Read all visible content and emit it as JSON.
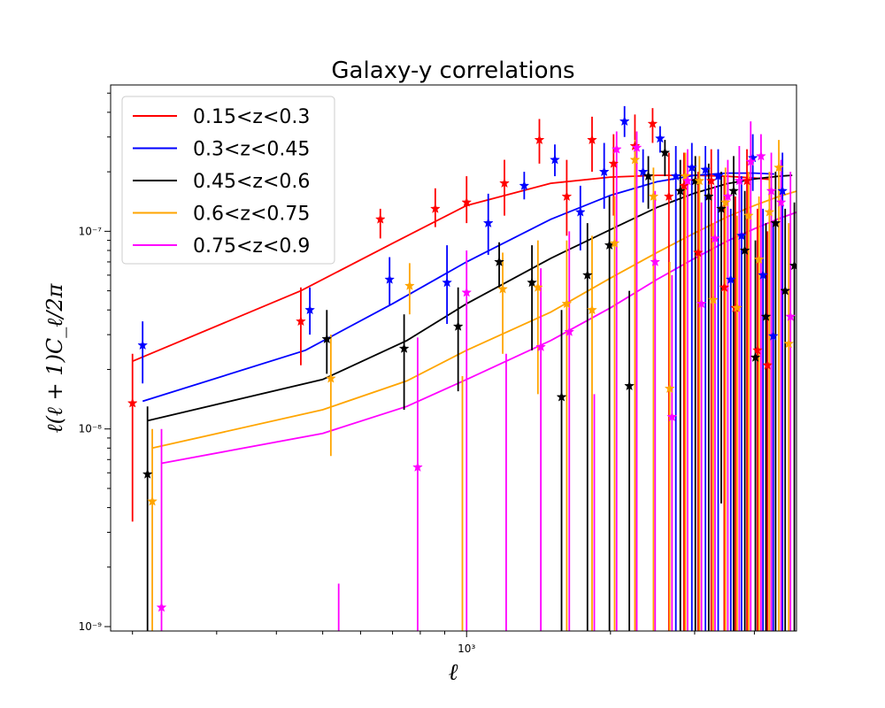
{
  "chart_data": {
    "type": "scatter",
    "title": "Galaxy-y correlations",
    "xlabel": "ℓ",
    "ylabel": "ℓ(ℓ + 1)C_ℓ/2π",
    "xscale": "log",
    "yscale": "log",
    "xlim": [
      180,
      4900
    ],
    "ylim": [
      9.5e-10,
      5.5e-07
    ],
    "x_ticks": [
      {
        "value": 1000,
        "label": "10³"
      }
    ],
    "y_ticks": [
      {
        "value": 1e-09,
        "label": "10⁻⁹"
      },
      {
        "value": 1e-08,
        "label": "10⁻⁸"
      },
      {
        "value": 1e-07,
        "label": "10⁻⁷"
      }
    ],
    "legend_position": "upper-left",
    "grid": false,
    "marker": "star",
    "series": [
      {
        "name": "0.15<z<0.3",
        "color": "#ff0000",
        "model": {
          "x": [
            200,
            450,
            700,
            1000,
            1500,
            2000,
            2500,
            3000,
            3500,
            4000,
            4300
          ],
          "y": [
            2.2e-08,
            5e-08,
            8.7e-08,
            1.35e-07,
            1.75e-07,
            1.88e-07,
            1.92e-07,
            1.92e-07,
            1.9e-07,
            1.86e-07,
            1.83e-07
          ]
        },
        "points": [
          {
            "x": 200,
            "y": 1.35e-08,
            "lo": 3.4e-09,
            "hi": 2.4e-08
          },
          {
            "x": 450,
            "y": 3.5e-08,
            "lo": 2.1e-08,
            "hi": 5.2e-08
          },
          {
            "x": 660,
            "y": 1.15e-07,
            "lo": 9.2e-08,
            "hi": 1.3e-07
          },
          {
            "x": 860,
            "y": 1.3e-07,
            "lo": 1.05e-07,
            "hi": 1.65e-07
          },
          {
            "x": 1000,
            "y": 1.4e-07,
            "lo": 1.1e-07,
            "hi": 1.9e-07
          },
          {
            "x": 1200,
            "y": 1.75e-07,
            "lo": 1.2e-07,
            "hi": 2.3e-07
          },
          {
            "x": 1420,
            "y": 2.9e-07,
            "lo": 2.2e-07,
            "hi": 3.7e-07
          },
          {
            "x": 1620,
            "y": 1.5e-07,
            "lo": 9.5e-08,
            "hi": 2.3e-07
          },
          {
            "x": 1830,
            "y": 2.9e-07,
            "lo": 2e-07,
            "hi": 3.8e-07
          },
          {
            "x": 2030,
            "y": 2.2e-07,
            "lo": 1.2e-07,
            "hi": 3.1e-07
          },
          {
            "x": 2250,
            "y": 2.7e-07,
            "lo": 9e-10,
            "hi": 3.9e-07
          },
          {
            "x": 2450,
            "y": 3.5e-07,
            "lo": 2.8e-07,
            "hi": 4.2e-07
          },
          {
            "x": 2650,
            "y": 1.5e-07,
            "lo": 9e-10,
            "hi": 2.5e-07
          },
          {
            "x": 2850,
            "y": 1.7e-07,
            "lo": 9e-10,
            "hi": 2.5e-07
          },
          {
            "x": 3050,
            "y": 7.8e-08,
            "lo": 9e-10,
            "hi": 2e-07
          },
          {
            "x": 3250,
            "y": 1.8e-07,
            "lo": 9e-10,
            "hi": 2.6e-07
          },
          {
            "x": 3460,
            "y": 5.2e-08,
            "lo": 9e-10,
            "hi": 1.9e-07
          },
          {
            "x": 3650,
            "y": 4.1e-08,
            "lo": 9e-10,
            "hi": 1.5e-07
          },
          {
            "x": 3860,
            "y": 1.8e-07,
            "lo": 9e-10,
            "hi": 2.6e-07
          },
          {
            "x": 4060,
            "y": 2.5e-08,
            "lo": 9e-10,
            "hi": 1.3e-07
          },
          {
            "x": 4260,
            "y": 2.1e-08,
            "lo": 9e-10,
            "hi": 1e-07
          }
        ]
      },
      {
        "name": "0.3<z<0.45",
        "color": "#0000ff",
        "model": {
          "x": [
            210,
            460,
            700,
            1000,
            1500,
            2000,
            2500,
            3000,
            3500,
            4000,
            4400
          ],
          "y": [
            1.38e-08,
            2.5e-08,
            4.3e-08,
            7e-08,
            1.15e-07,
            1.52e-07,
            1.78e-07,
            1.92e-07,
            1.97e-07,
            1.97e-07,
            1.95e-07
          ]
        },
        "points": [
          {
            "x": 210,
            "y": 2.65e-08,
            "lo": 1.7e-08,
            "hi": 3.5e-08
          },
          {
            "x": 470,
            "y": 4e-08,
            "lo": 3e-08,
            "hi": 5.2e-08
          },
          {
            "x": 690,
            "y": 5.7e-08,
            "lo": 4.2e-08,
            "hi": 7.4e-08
          },
          {
            "x": 910,
            "y": 5.5e-08,
            "lo": 3.4e-08,
            "hi": 8.5e-08
          },
          {
            "x": 1110,
            "y": 1.1e-07,
            "lo": 7.6e-08,
            "hi": 1.55e-07
          },
          {
            "x": 1320,
            "y": 1.7e-07,
            "lo": 1.45e-07,
            "hi": 2e-07
          },
          {
            "x": 1530,
            "y": 2.3e-07,
            "lo": 1.9e-07,
            "hi": 2.75e-07
          },
          {
            "x": 1730,
            "y": 1.25e-07,
            "lo": 8e-08,
            "hi": 1.7e-07
          },
          {
            "x": 1940,
            "y": 2e-07,
            "lo": 1.3e-07,
            "hi": 2.8e-07
          },
          {
            "x": 2140,
            "y": 3.6e-07,
            "lo": 3e-07,
            "hi": 4.3e-07
          },
          {
            "x": 2340,
            "y": 2e-07,
            "lo": 1.4e-07,
            "hi": 2.6e-07
          },
          {
            "x": 2540,
            "y": 2.95e-07,
            "lo": 2.5e-07,
            "hi": 3.4e-07
          },
          {
            "x": 2740,
            "y": 1.9e-07,
            "lo": 9e-10,
            "hi": 2.7e-07
          },
          {
            "x": 2960,
            "y": 2.1e-07,
            "lo": 9e-10,
            "hi": 2.8e-07
          },
          {
            "x": 3160,
            "y": 2.05e-07,
            "lo": 9e-10,
            "hi": 2.7e-07
          },
          {
            "x": 3360,
            "y": 1.9e-07,
            "lo": 9e-10,
            "hi": 2.6e-07
          },
          {
            "x": 3570,
            "y": 5.7e-08,
            "lo": 9e-10,
            "hi": 1.3e-07
          },
          {
            "x": 3760,
            "y": 9.5e-08,
            "lo": 9e-10,
            "hi": 1.9e-07
          },
          {
            "x": 3970,
            "y": 2.35e-07,
            "lo": 1.6e-07,
            "hi": 3.1e-07
          },
          {
            "x": 4170,
            "y": 6e-08,
            "lo": 9e-10,
            "hi": 1.3e-07
          },
          {
            "x": 4380,
            "y": 2.95e-08,
            "lo": 9e-10,
            "hi": 1.1e-07
          },
          {
            "x": 4580,
            "y": 1.6e-07,
            "lo": 9e-10,
            "hi": 2.5e-07
          }
        ]
      },
      {
        "name": "0.45<z<0.6",
        "color": "#000000",
        "model": {
          "x": [
            215,
            500,
            750,
            1000,
            1500,
            2000,
            2500,
            3000,
            3500,
            4000,
            4500,
            4800
          ],
          "y": [
            1.1e-08,
            1.78e-08,
            2.8e-08,
            4.3e-08,
            7.3e-08,
            1.02e-07,
            1.32e-07,
            1.56e-07,
            1.74e-07,
            1.84e-07,
            1.9e-07,
            1.92e-07
          ]
        },
        "points": [
          {
            "x": 215,
            "y": 5.9e-09,
            "lo": 9e-10,
            "hi": 1.3e-08
          },
          {
            "x": 510,
            "y": 2.85e-08,
            "lo": 1.9e-08,
            "hi": 4e-08
          },
          {
            "x": 740,
            "y": 2.55e-08,
            "lo": 1.25e-08,
            "hi": 3.8e-08
          },
          {
            "x": 960,
            "y": 3.3e-08,
            "lo": 1.55e-08,
            "hi": 5.2e-08
          },
          {
            "x": 1170,
            "y": 7e-08,
            "lo": 5.2e-08,
            "hi": 8.8e-08
          },
          {
            "x": 1370,
            "y": 5.5e-08,
            "lo": 2.5e-08,
            "hi": 8.5e-08
          },
          {
            "x": 1580,
            "y": 1.45e-08,
            "lo": 9e-10,
            "hi": 4e-08
          },
          {
            "x": 1790,
            "y": 6e-08,
            "lo": 9e-10,
            "hi": 1.1e-07
          },
          {
            "x": 1990,
            "y": 8.5e-08,
            "lo": 9e-10,
            "hi": 1.5e-07
          },
          {
            "x": 2190,
            "y": 1.65e-08,
            "lo": 9e-10,
            "hi": 5e-08
          },
          {
            "x": 2400,
            "y": 1.9e-07,
            "lo": 1.3e-07,
            "hi": 2.4e-07
          },
          {
            "x": 2600,
            "y": 2.5e-07,
            "lo": 1.9e-07,
            "hi": 2.9e-07
          },
          {
            "x": 2800,
            "y": 1.6e-07,
            "lo": 9e-10,
            "hi": 2.3e-07
          },
          {
            "x": 3010,
            "y": 1.8e-07,
            "lo": 9e-10,
            "hi": 2.4e-07
          },
          {
            "x": 3210,
            "y": 1.5e-07,
            "lo": 9e-10,
            "hi": 2.2e-07
          },
          {
            "x": 3410,
            "y": 1.3e-07,
            "lo": 4.2e-09,
            "hi": 2e-07
          },
          {
            "x": 3620,
            "y": 1.6e-07,
            "lo": 9e-10,
            "hi": 2.4e-07
          },
          {
            "x": 3820,
            "y": 8e-08,
            "lo": 9e-10,
            "hi": 1.6e-07
          },
          {
            "x": 4020,
            "y": 2.3e-08,
            "lo": 9e-10,
            "hi": 9e-08
          },
          {
            "x": 4230,
            "y": 3.7e-08,
            "lo": 9e-10,
            "hi": 1.1e-07
          },
          {
            "x": 4430,
            "y": 1.1e-07,
            "lo": 9e-10,
            "hi": 2e-07
          },
          {
            "x": 4640,
            "y": 5e-08,
            "lo": 9e-10,
            "hi": 1.3e-07
          },
          {
            "x": 4850,
            "y": 6.7e-08,
            "lo": 9e-10,
            "hi": 1.4e-07
          }
        ]
      },
      {
        "name": "0.6<z<0.75",
        "color": "#ffa500",
        "model": {
          "x": [
            220,
            500,
            750,
            1000,
            1500,
            2000,
            2500,
            3000,
            3500,
            4000,
            4500,
            5000
          ],
          "y": [
            8e-09,
            1.25e-08,
            1.75e-08,
            2.5e-08,
            3.9e-08,
            5.8e-08,
            7.8e-08,
            9.8e-08,
            1.18e-07,
            1.35e-07,
            1.5e-07,
            1.62e-07
          ]
        },
        "points": [
          {
            "x": 220,
            "y": 4.3e-09,
            "lo": 9e-10,
            "hi": 1e-08
          },
          {
            "x": 520,
            "y": 1.8e-08,
            "lo": 7.3e-09,
            "hi": 3e-08
          },
          {
            "x": 760,
            "y": 5.3e-08,
            "lo": 3.8e-08,
            "hi": 6.9e-08
          },
          {
            "x": 980,
            "y": 9e-10,
            "lo": 9e-10,
            "hi": 1.85e-08
          },
          {
            "x": 1190,
            "y": 5.1e-08,
            "lo": 2.4e-08,
            "hi": 7.8e-08
          },
          {
            "x": 1410,
            "y": 5.2e-08,
            "lo": 1.5e-08,
            "hi": 9e-08
          },
          {
            "x": 1620,
            "y": 4.3e-08,
            "lo": 9e-10,
            "hi": 9e-08
          },
          {
            "x": 1830,
            "y": 4e-08,
            "lo": 9e-10,
            "hi": 9.5e-08
          },
          {
            "x": 2040,
            "y": 8.7e-08,
            "lo": 9e-10,
            "hi": 1.5e-07
          },
          {
            "x": 2250,
            "y": 2.3e-07,
            "lo": 9e-10,
            "hi": 2.9e-07
          },
          {
            "x": 2460,
            "y": 1.5e-07,
            "lo": 9e-10,
            "hi": 2.1e-07
          },
          {
            "x": 2660,
            "y": 1.6e-08,
            "lo": 9e-10,
            "hi": 7e-08
          },
          {
            "x": 2870,
            "y": 1.9e-07,
            "lo": 9e-10,
            "hi": 2.5e-07
          },
          {
            "x": 3070,
            "y": 1.8e-07,
            "lo": 9e-10,
            "hi": 2.4e-07
          },
          {
            "x": 3280,
            "y": 4.5e-08,
            "lo": 9e-10,
            "hi": 1.1e-07
          },
          {
            "x": 3480,
            "y": 1.4e-07,
            "lo": 9e-10,
            "hi": 2.1e-07
          },
          {
            "x": 3680,
            "y": 4.1e-08,
            "lo": 9e-10,
            "hi": 1.2e-07
          },
          {
            "x": 3890,
            "y": 1.2e-07,
            "lo": 9e-10,
            "hi": 2e-07
          },
          {
            "x": 4090,
            "y": 7.2e-08,
            "lo": 9e-10,
            "hi": 1.5e-07
          },
          {
            "x": 4300,
            "y": 1.25e-07,
            "lo": 9e-10,
            "hi": 2e-07
          },
          {
            "x": 4500,
            "y": 2.1e-07,
            "lo": 9e-10,
            "hi": 2.9e-07
          },
          {
            "x": 4720,
            "y": 2.7e-08,
            "lo": 9e-10,
            "hi": 1.1e-07
          }
        ]
      },
      {
        "name": "0.75<z<0.9",
        "color": "#ff00ff",
        "model": {
          "x": [
            230,
            500,
            750,
            1000,
            1500,
            2000,
            2500,
            3000,
            3500,
            4000,
            4500,
            5000
          ],
          "y": [
            6.7e-09,
            9.5e-09,
            1.3e-08,
            1.78e-08,
            2.8e-08,
            4.1e-08,
            5.7e-08,
            7.3e-08,
            8.9e-08,
            1.03e-07,
            1.16e-07,
            1.27e-07
          ]
        },
        "points": [
          {
            "x": 230,
            "y": 1.25e-09,
            "lo": 9e-10,
            "hi": 1e-08
          },
          {
            "x": 540,
            "y": 9e-10,
            "lo": 9e-10,
            "hi": 1.65e-09
          },
          {
            "x": 790,
            "y": 6.4e-09,
            "lo": 9e-10,
            "hi": 2.9e-08
          },
          {
            "x": 1000,
            "y": 4.9e-08,
            "lo": 9e-10,
            "hi": 8e-08
          },
          {
            "x": 1210,
            "y": 9e-10,
            "lo": 9e-10,
            "hi": 2.4e-08
          },
          {
            "x": 1430,
            "y": 2.6e-08,
            "lo": 9e-10,
            "hi": 6.5e-08
          },
          {
            "x": 1640,
            "y": 3.1e-08,
            "lo": 9e-10,
            "hi": 1e-07
          },
          {
            "x": 1850,
            "y": 9e-10,
            "lo": 9e-10,
            "hi": 1.5e-08
          },
          {
            "x": 2060,
            "y": 2.6e-07,
            "lo": 9e-10,
            "hi": 3.2e-07
          },
          {
            "x": 2270,
            "y": 2.65e-07,
            "lo": 9e-10,
            "hi": 3.2e-07
          },
          {
            "x": 2480,
            "y": 7e-08,
            "lo": 9e-10,
            "hi": 1.6e-07
          },
          {
            "x": 2690,
            "y": 1.15e-08,
            "lo": 9e-10,
            "hi": 6e-08
          },
          {
            "x": 2900,
            "y": 1.8e-07,
            "lo": 9e-10,
            "hi": 2.6e-07
          },
          {
            "x": 3100,
            "y": 4.3e-08,
            "lo": 9e-10,
            "hi": 1.4e-07
          },
          {
            "x": 3310,
            "y": 9.2e-08,
            "lo": 9e-10,
            "hi": 1.7e-07
          },
          {
            "x": 3520,
            "y": 1.5e-07,
            "lo": 9e-10,
            "hi": 2.3e-07
          },
          {
            "x": 3720,
            "y": 1.8e-07,
            "lo": 9e-10,
            "hi": 2.7e-07
          },
          {
            "x": 3930,
            "y": 2.25e-07,
            "lo": 9e-10,
            "hi": 3.6e-07
          },
          {
            "x": 4130,
            "y": 2.4e-07,
            "lo": 9e-10,
            "hi": 3.1e-07
          },
          {
            "x": 4340,
            "y": 1.6e-07,
            "lo": 9e-10,
            "hi": 2.5e-07
          },
          {
            "x": 4550,
            "y": 1.4e-07,
            "lo": 9e-10,
            "hi": 2.3e-07
          },
          {
            "x": 4760,
            "y": 3.7e-08,
            "lo": 9e-10,
            "hi": 2e-07
          }
        ]
      }
    ]
  }
}
